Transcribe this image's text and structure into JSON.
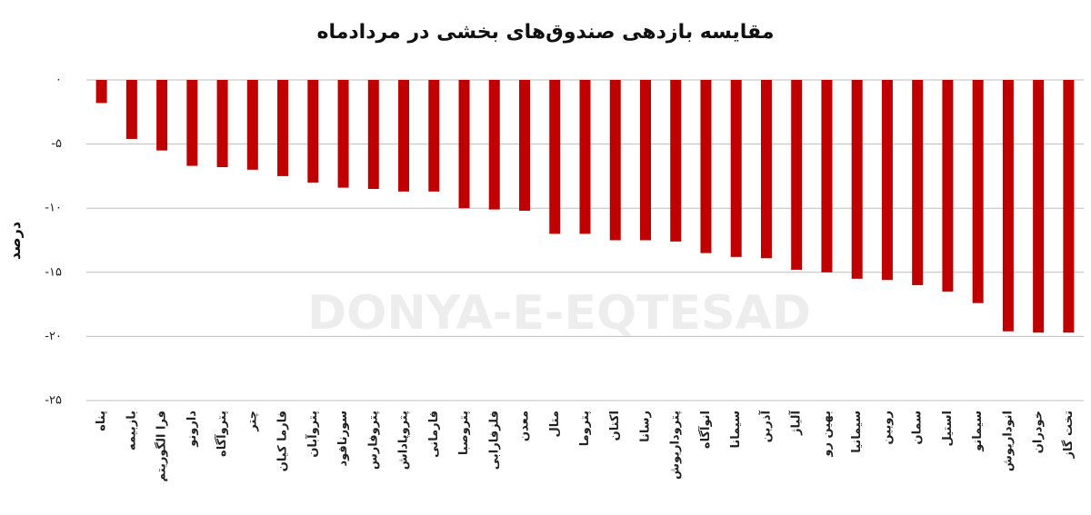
{
  "chart_data": {
    "type": "bar",
    "title": "مقایسه بازدهی صندوق‌های بخشی در مردادماه",
    "y_label": "درصد",
    "watermark": "DONYA-E-EQTESAD",
    "categories": [
      "پناه",
      "بازبیمه",
      "فرا الگوریتم",
      "دارونو",
      "پتروآگاه",
      "چتر",
      "فارما کیان",
      "پتروآبان",
      "سورنافود",
      "پتروفارس",
      "پتروپاداش",
      "فارمانی",
      "پتروصبا",
      "فلزفارابی",
      "معدن",
      "متال",
      "پتروما",
      "اکتان",
      "رسانا",
      "پتروداریوش",
      "انوآگاه",
      "سیمانا",
      "آذرین",
      "آلیاژ",
      "بهین رو",
      "سیمانیا",
      "رویین",
      "سمان",
      "استیل",
      "سیمانو",
      "انوداریوش",
      "خودران",
      "تخت گاز"
    ],
    "values": [
      -1.8,
      -4.6,
      -5.5,
      -6.7,
      -6.8,
      -7.0,
      -7.5,
      -8.0,
      -8.4,
      -8.5,
      -8.7,
      -8.7,
      -10.0,
      -10.1,
      -10.2,
      -12.0,
      -12.0,
      -12.5,
      -12.5,
      -12.6,
      -13.5,
      -13.8,
      -13.9,
      -14.8,
      -15.0,
      -15.5,
      -15.6,
      -16.0,
      -16.5,
      -17.4,
      -19.6,
      -19.7,
      -19.7
    ],
    "color": "#c00000",
    "ylim": [
      -25,
      0
    ],
    "yticks": [
      {
        "value": 0,
        "label": "۰"
      },
      {
        "value": -5,
        "label": "-۵"
      },
      {
        "value": -10,
        "label": "-۱۰"
      },
      {
        "value": -15,
        "label": "-۱۵"
      },
      {
        "value": -20,
        "label": "-۲۰"
      },
      {
        "value": -25,
        "label": "-۲۵"
      }
    ],
    "grid": true
  }
}
